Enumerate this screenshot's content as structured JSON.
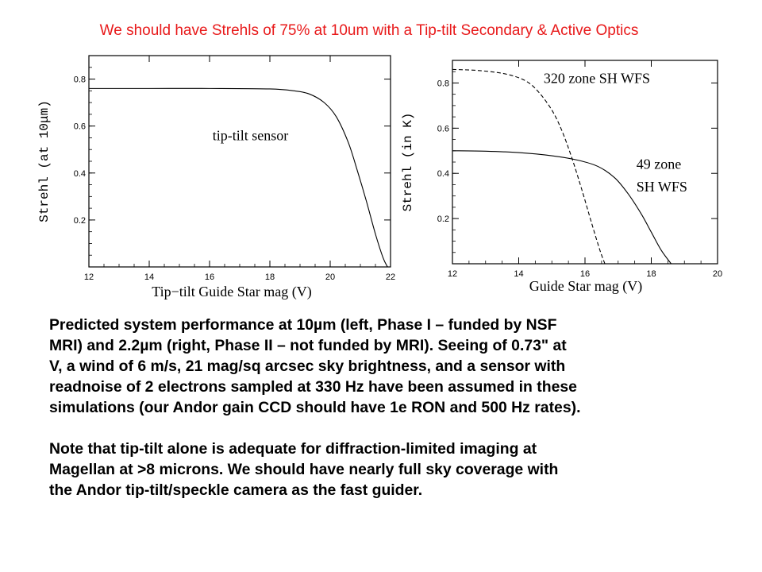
{
  "slide": {
    "title": "We should have Strehls of 75% at 10um with a Tip-tilt Secondary & Active Optics",
    "title_color": "#e8191a"
  },
  "caption": {
    "paragraph1": [
      "Predicted system performance at 10µm (left, Phase I – funded by NSF",
      "MRI) and 2.2µm (right, Phase II – not funded by MRI). Seeing of 0.73\" at",
      "V, a wind of 6 m/s, 21 mag/sq arcsec sky brightness, and a sensor with",
      "readnoise of 2 electrons sampled at 330 Hz have been assumed in these",
      "simulations (our Andor gain CCD should have 1e RON and 500 Hz rates)."
    ],
    "paragraph2": [
      "Note that tip-tilt alone is adequate for diffraction-limited imaging at",
      "Magellan at >8 microns. We should have nearly full sky coverage with",
      "the Andor tip-tilt/speckle camera as the fast guider."
    ]
  },
  "chart_data": [
    {
      "type": "line",
      "xlabel": "Tip−tilt Guide Star mag (V)",
      "ylabel": "Strehl (at 10μm)",
      "xlim": [
        12,
        22
      ],
      "ylim": [
        0,
        0.9
      ],
      "xticks": [
        12,
        14,
        16,
        18,
        20,
        22
      ],
      "xtick_labels": [
        "12",
        "14",
        "16",
        "18",
        "20",
        "22"
      ],
      "yticks": [
        0.2,
        0.4,
        0.6,
        0.8
      ],
      "ytick_labels": [
        "0.2",
        "0.4",
        "0.6",
        "0.8"
      ],
      "grid": false,
      "annotations": [
        {
          "text": "tip-tilt sensor",
          "x": 16.1,
          "y": 0.54
        }
      ],
      "series": [
        {
          "name": "",
          "style": "solid",
          "x": [
            12,
            14,
            16,
            18,
            18.8,
            19.3,
            19.8,
            20.2,
            20.6,
            20.9,
            21.2,
            21.5,
            21.75,
            21.9
          ],
          "y": [
            0.76,
            0.76,
            0.76,
            0.758,
            0.75,
            0.737,
            0.7,
            0.64,
            0.53,
            0.41,
            0.28,
            0.14,
            0.04,
            0
          ]
        }
      ]
    },
    {
      "type": "line",
      "xlabel": "Guide Star mag (V)",
      "ylabel": "Strehl (in K)",
      "xlim": [
        12,
        20
      ],
      "ylim": [
        0,
        0.9
      ],
      "xticks": [
        12,
        14,
        16,
        18,
        20
      ],
      "xtick_labels": [
        "12",
        "14",
        "16",
        "18",
        "20"
      ],
      "yticks": [
        0.2,
        0.4,
        0.6,
        0.8
      ],
      "ytick_labels": [
        "0.2",
        "0.4",
        "0.6",
        "0.8"
      ],
      "grid": false,
      "annotations": [
        {
          "text": "320 zone SH WFS",
          "x": 14.75,
          "y": 0.8
        },
        {
          "text": "49 zone",
          "x": 17.55,
          "y": 0.42
        },
        {
          "text": "SH WFS",
          "x": 17.55,
          "y": 0.32
        }
      ],
      "series": [
        {
          "name": "320 zone SH WFS",
          "style": "dashed",
          "x": [
            12,
            12.8,
            13.6,
            14.2,
            14.6,
            15.0,
            15.3,
            15.6,
            15.9,
            16.2,
            16.45,
            16.6
          ],
          "y": [
            0.86,
            0.855,
            0.84,
            0.81,
            0.76,
            0.68,
            0.59,
            0.47,
            0.33,
            0.18,
            0.06,
            0
          ]
        },
        {
          "name": "49 zone SH WFS",
          "style": "solid",
          "x": [
            12,
            13,
            14,
            15,
            15.8,
            16.4,
            16.9,
            17.3,
            17.7,
            18.0,
            18.3,
            18.6
          ],
          "y": [
            0.5,
            0.498,
            0.492,
            0.478,
            0.458,
            0.43,
            0.38,
            0.31,
            0.22,
            0.14,
            0.06,
            0
          ]
        }
      ]
    }
  ]
}
